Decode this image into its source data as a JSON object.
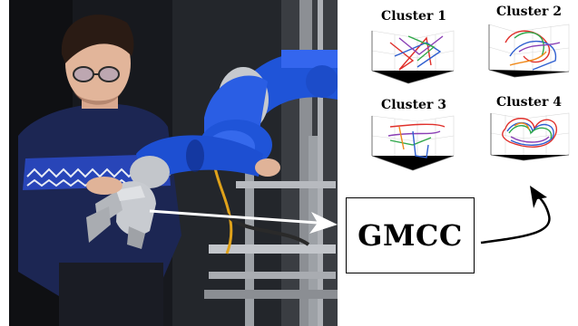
{
  "gmcc": {
    "label": "GMCC"
  },
  "clusters": [
    {
      "title": "Cluster 1"
    },
    {
      "title": "Cluster 2"
    },
    {
      "title": "Cluster 3"
    },
    {
      "title": "Cluster 4"
    }
  ],
  "colors": {
    "robot_blue": "#1e4fd6",
    "robot_silver": "#c9ccd1",
    "sweater_navy": "#1b2550",
    "sweater_blue": "#2b47c0",
    "traj_red": "#e0302b",
    "traj_blue": "#2f5fd0",
    "traj_green": "#2fa84a",
    "traj_purple": "#8a3fb5",
    "traj_orange": "#f08a1c"
  },
  "icons": [
    "right-arrow-icon",
    "curved-arrow-icon"
  ]
}
